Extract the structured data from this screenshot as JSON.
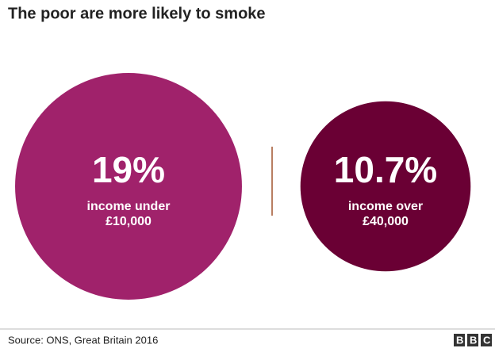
{
  "chart_data": {
    "type": "bubble",
    "title": "The poor are more likely to smoke",
    "categories": [
      "income under £10,000",
      "income over £40,000"
    ],
    "values": [
      19,
      10.7
    ],
    "value_labels": [
      "19%",
      "10.7%"
    ],
    "colors": [
      "#a0226b",
      "#6a0034"
    ],
    "source": "Source: ONS, Great Britain 2016",
    "logo": "BBC"
  }
}
